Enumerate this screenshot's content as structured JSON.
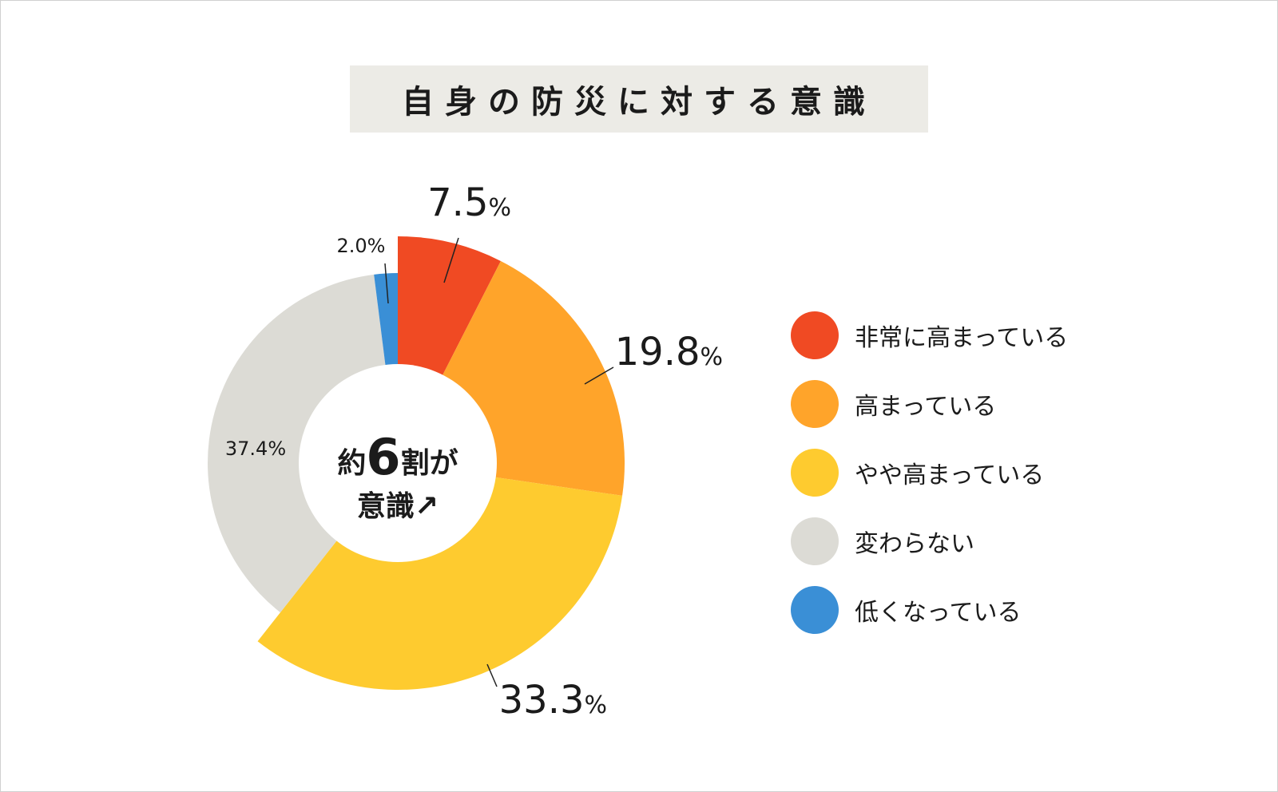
{
  "title": "自身の防災に対する意識",
  "chart_data": {
    "type": "pie",
    "variant": "donut",
    "title": "自身の防災に対する意識",
    "unit": "%",
    "series": [
      {
        "name": "非常に高まっている",
        "value": 7.5,
        "label": "7.5",
        "color": "#f04a23"
      },
      {
        "name": "高まっている",
        "value": 19.8,
        "label": "19.8",
        "color": "#ffa42a"
      },
      {
        "name": "やや高まっている",
        "value": 33.3,
        "label": "33.3",
        "color": "#fecb2f"
      },
      {
        "name": "変わらない",
        "value": 37.4,
        "label": "37.4%",
        "color": "#dcdbd5"
      },
      {
        "name": "低くなっている",
        "value": 2.0,
        "label": "2.0%",
        "color": "#3a8fd6"
      }
    ],
    "center_text": {
      "prefix": "約",
      "number": "6",
      "suffix": "割が",
      "line2": "意識↗"
    },
    "legend_position": "right"
  }
}
